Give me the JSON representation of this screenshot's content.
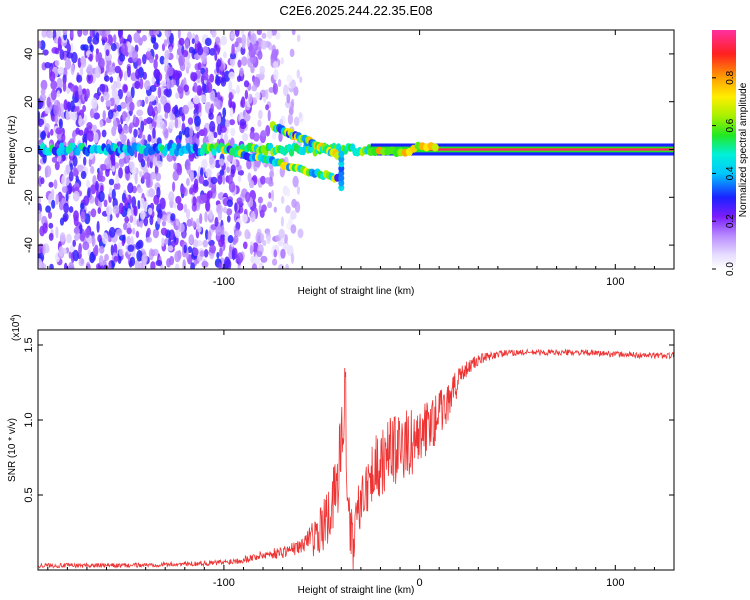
{
  "chart_data": [
    {
      "type": "heatmap",
      "title": "C2E6.2025.244.22.35.E08",
      "xlabel": "Height of straight line (km)",
      "ylabel": "Frequency (Hz)",
      "xlim": [
        -195,
        130
      ],
      "ylim": [
        -50,
        50
      ],
      "xticks": [
        -100,
        0,
        100
      ],
      "xtick_labels": [
        "-100",
        "",
        "100"
      ],
      "yticks": [
        -40,
        -20,
        0,
        20,
        40
      ],
      "ytick_labels": [
        "-40",
        "-20",
        "0",
        "20",
        "40"
      ],
      "colorbar": {
        "label": "Normalized spectral amplitude",
        "range": [
          0,
          1
        ],
        "ticks": [
          0,
          0.2,
          0.4,
          0.6,
          0.8
        ],
        "tick_labels": [
          "0.0",
          "0.2",
          "0.4",
          "0.6",
          "0.8"
        ]
      },
      "features": [
        {
          "name": "direct-wave carrier",
          "x_range": [
            -195,
            130
          ],
          "frequency_hz": 0,
          "peak_amplitude": 0.95,
          "note": "strong line at 0 Hz from about -25 km upward"
        },
        {
          "name": "upper doppler branch",
          "x_range": [
            -75,
            -42
          ],
          "frequency_hz_range": [
            10,
            -2
          ],
          "peak_amplitude": 0.55
        },
        {
          "name": "lower doppler branch",
          "x_range": [
            -100,
            -42
          ],
          "frequency_hz_range": [
            0,
            -12
          ],
          "peak_amplitude": 0.5
        },
        {
          "name": "background noise",
          "x_range": [
            -195,
            -60
          ],
          "frequency_hz_range": [
            -50,
            50
          ],
          "peak_amplitude": 0.25
        }
      ]
    },
    {
      "type": "line",
      "title": "",
      "xlabel": "Height of straight line (km)",
      "ylabel": "SNR (10 * v/v)",
      "y_multiplier": "(x10",
      "y_multiplier_exp": "4",
      "xlim": [
        -195,
        130
      ],
      "ylim": [
        0,
        1.6
      ],
      "xticks": [
        -100,
        0,
        100
      ],
      "xtick_labels": [
        "-100",
        "0",
        "100"
      ],
      "yticks": [
        0.5,
        1.0,
        1.5
      ],
      "ytick_labels": [
        "0.5",
        "1.0",
        "1.5"
      ],
      "color": "#ee3333",
      "series": [
        {
          "name": "SNR",
          "x": [
            -195,
            -150,
            -120,
            -100,
            -90,
            -80,
            -70,
            -60,
            -55,
            -50,
            -45,
            -42,
            -40,
            -38,
            -36,
            -34,
            -30,
            -25,
            -20,
            -15,
            -10,
            -5,
            0,
            5,
            10,
            15,
            20,
            25,
            30,
            35,
            40,
            50,
            60,
            80,
            100,
            115,
            130
          ],
          "y": [
            0.03,
            0.03,
            0.04,
            0.05,
            0.07,
            0.1,
            0.12,
            0.16,
            0.25,
            0.35,
            0.5,
            0.7,
            0.95,
            1.3,
            0.4,
            0.25,
            0.6,
            0.75,
            0.85,
            0.9,
            0.95,
            0.95,
            1.0,
            1.05,
            1.12,
            1.2,
            1.3,
            1.35,
            1.4,
            1.42,
            1.44,
            1.45,
            1.45,
            1.45,
            1.44,
            1.43,
            1.43
          ],
          "noise": [
            0.015,
            0.015,
            0.015,
            0.02,
            0.025,
            0.03,
            0.04,
            0.05,
            0.07,
            0.1,
            0.14,
            0.15,
            0.2,
            0.2,
            0.15,
            0.12,
            0.12,
            0.14,
            0.15,
            0.15,
            0.15,
            0.14,
            0.13,
            0.12,
            0.1,
            0.08,
            0.06,
            0.05,
            0.04,
            0.03,
            0.025,
            0.02,
            0.02,
            0.02,
            0.02,
            0.02,
            0.02
          ]
        }
      ]
    }
  ]
}
